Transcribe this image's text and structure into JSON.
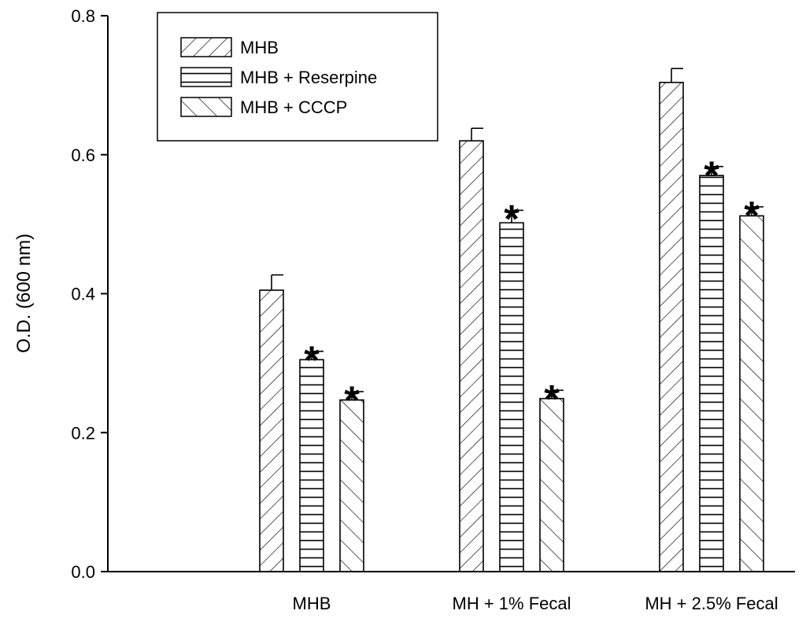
{
  "chart_data": {
    "type": "bar",
    "title": "",
    "xlabel": "",
    "ylabel": "O.D. (600 nm)",
    "ylim": [
      0,
      0.8
    ],
    "yticks": [
      "0.0",
      "0.2",
      "0.4",
      "0.6",
      "0.8"
    ],
    "categories": [
      "MHB",
      "MH + 1% Fecal",
      "MH + 2.5% Fecal"
    ],
    "significance_marker": "*",
    "legend_position": "top-left",
    "series": [
      {
        "name": "MHB",
        "pattern": "forward-diagonal-hatch",
        "values": [
          0.405,
          0.62,
          0.704
        ],
        "errors": [
          0.022,
          0.018,
          0.02
        ],
        "significant": [
          false,
          false,
          false
        ]
      },
      {
        "name": "MHB + Reserpine",
        "pattern": "horizontal-lines",
        "values": [
          0.305,
          0.502,
          0.57
        ],
        "errors": [
          0.012,
          0.018,
          0.013
        ],
        "significant": [
          true,
          true,
          true
        ]
      },
      {
        "name": "MHB + CCCP",
        "pattern": "backward-diagonal-hatch",
        "values": [
          0.247,
          0.249,
          0.512
        ],
        "errors": [
          0.012,
          0.012,
          0.013
        ],
        "significant": [
          true,
          true,
          true
        ]
      }
    ]
  }
}
